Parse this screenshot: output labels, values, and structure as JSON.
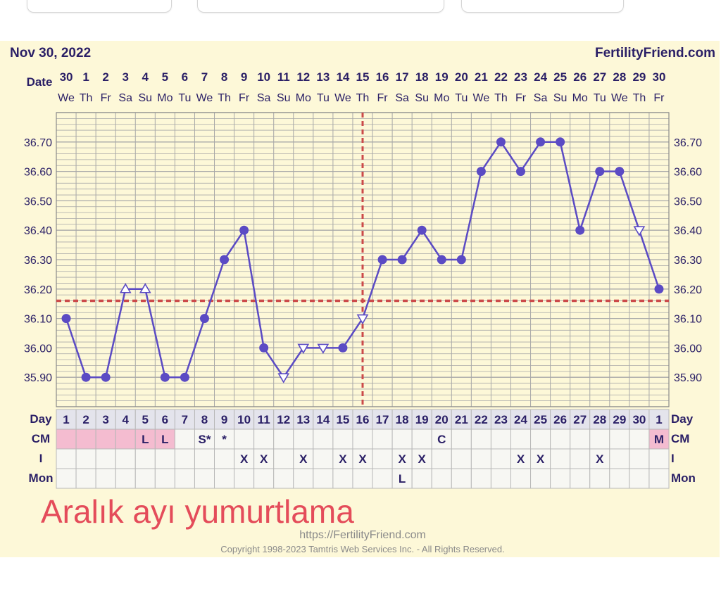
{
  "header": {
    "date_text": "Nov 30, 2022",
    "brand_text": "FertilityFriend.com"
  },
  "chart_data": {
    "type": "line",
    "ylim": [
      35.8,
      36.8
    ],
    "yticks": [
      "36.70",
      "36.60",
      "36.50",
      "36.40",
      "36.30",
      "36.20",
      "36.10",
      "36.00",
      "35.90"
    ],
    "ytick_values": [
      36.7,
      36.6,
      36.5,
      36.4,
      36.3,
      36.2,
      36.1,
      36.0,
      35.9
    ],
    "date_label": "Date",
    "dates": [
      "30",
      "1",
      "2",
      "3",
      "4",
      "5",
      "6",
      "7",
      "8",
      "9",
      "10",
      "11",
      "12",
      "13",
      "14",
      "15",
      "16",
      "17",
      "18",
      "19",
      "20",
      "21",
      "22",
      "23",
      "24",
      "25",
      "26",
      "27",
      "28",
      "29",
      "30"
    ],
    "weekdays": [
      "We",
      "Th",
      "Fr",
      "Sa",
      "Su",
      "Mo",
      "Tu",
      "We",
      "Th",
      "Fr",
      "Sa",
      "Su",
      "Mo",
      "Tu",
      "We",
      "Th",
      "Fr",
      "Sa",
      "Su",
      "Mo",
      "Tu",
      "We",
      "Th",
      "Fr",
      "Sa",
      "Su",
      "Mo",
      "Tu",
      "We",
      "Th",
      "Fr"
    ],
    "temperatures": [
      36.1,
      35.9,
      35.9,
      36.2,
      36.2,
      35.9,
      35.9,
      36.1,
      36.3,
      36.4,
      36.0,
      35.9,
      36.0,
      36.0,
      36.0,
      36.1,
      36.3,
      36.3,
      36.4,
      36.3,
      36.3,
      36.6,
      36.7,
      36.6,
      36.7,
      36.7,
      36.4,
      36.6,
      36.6,
      36.4,
      36.2
    ],
    "markers": [
      "circle",
      "circle",
      "circle",
      "triangle-up",
      "triangle-up",
      "circle",
      "circle",
      "circle",
      "circle",
      "circle",
      "circle",
      "triangle-down",
      "triangle-down",
      "triangle-down",
      "circle",
      "triangle-down",
      "circle",
      "circle",
      "circle",
      "circle",
      "circle",
      "circle",
      "circle",
      "circle",
      "circle",
      "circle",
      "circle",
      "circle",
      "circle",
      "triangle-down",
      "circle"
    ],
    "coverline": 36.16,
    "ovulation_day_index": 15,
    "row_labels": {
      "day": "Day",
      "cm": "CM",
      "i": "I",
      "mon": "Mon"
    },
    "days": [
      "1",
      "2",
      "3",
      "4",
      "5",
      "6",
      "7",
      "8",
      "9",
      "10",
      "11",
      "12",
      "13",
      "14",
      "15",
      "16",
      "17",
      "18",
      "19",
      "20",
      "21",
      "22",
      "23",
      "24",
      "25",
      "26",
      "27",
      "28",
      "29",
      "30",
      "1"
    ],
    "cm": [
      "",
      "",
      "",
      "",
      "L",
      "L",
      "",
      "S*",
      "*",
      "",
      "",
      "",
      "",
      "",
      "",
      "",
      "",
      "",
      "",
      "C",
      "",
      "",
      "",
      "",
      "",
      "",
      "",
      "",
      "",
      "",
      "M"
    ],
    "period_days": [
      0,
      1,
      2,
      3,
      4,
      5,
      30
    ],
    "intercourse": [
      "",
      "",
      "",
      "",
      "",
      "",
      "",
      "",
      "",
      "X",
      "X",
      "",
      "X",
      "",
      "X",
      "X",
      "",
      "X",
      "X",
      "",
      "",
      "",
      "",
      "X",
      "X",
      "",
      "",
      "X",
      "",
      "",
      ""
    ],
    "mon": [
      "",
      "",
      "",
      "",
      "",
      "",
      "",
      "",
      "",
      "",
      "",
      "",
      "",
      "",
      "",
      "",
      "",
      "L",
      "",
      "",
      "",
      "",
      "",
      "",
      "",
      "",
      "",
      "",
      "",
      "",
      ""
    ],
    "colors": {
      "line": "#5b4bc4",
      "coverline": "#cc4a4a",
      "period": "#f4bcd0",
      "panel": "#fdf8d8",
      "grid": "#a8a8a8",
      "text": "#2a1f66"
    }
  },
  "annotation": "Aralık ayı yumurtlama",
  "footer": {
    "url": "https://FertilityFriend.com",
    "copyright": "Copyright 1998-2023 Tamtris Web Services Inc. - All Rights Reserved."
  }
}
